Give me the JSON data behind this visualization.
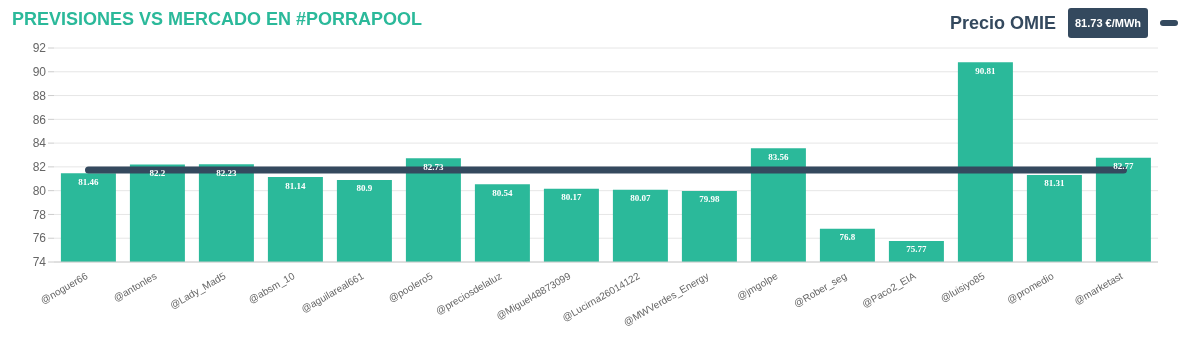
{
  "chart_data": {
    "type": "bar",
    "title": "PREVISIONES VS MERCADO EN #PORRAPOOL",
    "categories": [
      "@noguer66",
      "@antonles",
      "@Lady_Mad5",
      "@absm_10",
      "@aguilareal661",
      "@poolero5",
      "@preciosdelaluz",
      "@Miguel48873099",
      "@Lucirna26014122",
      "@MWVerdes_Energy",
      "@jmgolpe",
      "@Rober_seg",
      "@Paco2_EIA",
      "@luisiyo85",
      "@promedio",
      "@marketast"
    ],
    "series": [
      {
        "color": "#2bb99a",
        "values": [
          81.46,
          82.2,
          82.23,
          81.14,
          80.9,
          82.73,
          80.54,
          80.17,
          80.07,
          79.98,
          83.56,
          76.8,
          75.77,
          90.81,
          81.31,
          82.77
        ],
        "value_labels": [
          "81.46",
          "82.2",
          "82.23",
          "81.14",
          "80.9",
          "82.73",
          "80.54",
          "80.17",
          "80.07",
          "79.98",
          "83.56",
          "76.8",
          "75.77",
          "90.81",
          "81.31",
          "82.77"
        ]
      },
      {
        "type": "line",
        "name": "Precio OMIE",
        "color": "#34495e",
        "values": [
          81.73,
          81.73,
          81.73,
          81.73,
          81.73,
          81.73,
          81.73,
          81.73,
          81.73,
          81.73,
          81.73,
          81.73,
          81.73,
          81.73,
          81.73,
          81.73
        ]
      }
    ],
    "annotations": [
      "81.73 €/MWh"
    ],
    "ylim": [
      74,
      92
    ],
    "yticks": [
      74,
      76,
      78,
      80,
      82,
      84,
      86,
      88,
      90,
      92
    ],
    "grid": "y",
    "legend": "top right",
    "marker": "none",
    "line_style": "solid"
  }
}
